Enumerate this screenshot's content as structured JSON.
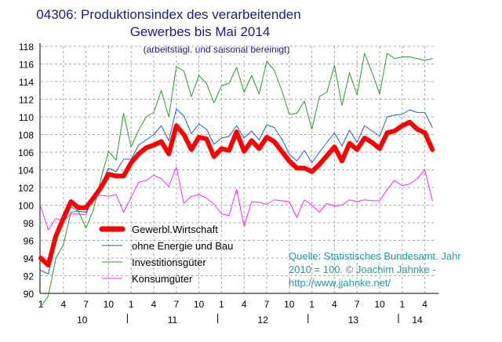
{
  "chart_data": {
    "type": "line",
    "title": [
      "04306: Produktionsindex des verarbeitenden",
      "Gewerbes bis Mai 2014"
    ],
    "subtitle": "(arbeitstägl. und saisonal bereinigt)",
    "ylim": [
      90,
      118
    ],
    "yticks": [
      "90",
      "92",
      "94",
      "96",
      "98",
      "100",
      "102",
      "104",
      "106",
      "108",
      "110",
      "112",
      "114",
      "116",
      "118"
    ],
    "xtick_months": [
      "1",
      "4",
      "7",
      "10"
    ],
    "years": [
      "10",
      "11",
      "12",
      "13",
      "14"
    ],
    "x_start": "2010-01",
    "n_months": 53,
    "grid": true,
    "legend_position": "bottom-left",
    "series": [
      {
        "name": "Gewerbl.Wirtschaft",
        "color": "#ff0000",
        "width": 6,
        "values": [
          94,
          93.2,
          96.5,
          98.5,
          100.4,
          99.7,
          99.7,
          100.8,
          102,
          103.5,
          103.3,
          103.3,
          104.8,
          105.8,
          106.5,
          106.8,
          107.2,
          105.8,
          109,
          108,
          106.3,
          107.7,
          107.5,
          105.5,
          106.4,
          106.2,
          108.3,
          106.1,
          107.3,
          106.4,
          107.7,
          107.2,
          106.1,
          105,
          104.2,
          104.2,
          103.8,
          104.6,
          105.6,
          106.6,
          105,
          107,
          106.3,
          107.6,
          107.1,
          106.4,
          108.2,
          108.4,
          109,
          109.4,
          108.6,
          108.2,
          106.3
        ]
      },
      {
        "name": "ohne Energie und Bau",
        "color": "#1f5fd0",
        "width": 1,
        "values": [
          92.6,
          92.2,
          96,
          98,
          99.8,
          99.3,
          99.2,
          100.7,
          102.3,
          104.2,
          103.8,
          105.2,
          105.2,
          106.8,
          107.4,
          108,
          109,
          107.3,
          110.9,
          110.1,
          108.1,
          109.2,
          108.6,
          106.9,
          107.6,
          107.8,
          109,
          107.6,
          108.4,
          107.4,
          109.1,
          108.8,
          107.5,
          105.8,
          105,
          106.2,
          104.8,
          106,
          107.1,
          108.2,
          106.7,
          108.5,
          107.1,
          109,
          108.4,
          107.8,
          110,
          110.2,
          110.3,
          110.8,
          110.5,
          110.5,
          108.8
        ]
      },
      {
        "name": "Investitionsgüter",
        "color": "#2a9a2a",
        "width": 1,
        "values": [
          88.5,
          89.7,
          94,
          95.5,
          99.2,
          99.3,
          97.4,
          99.5,
          103,
          106.1,
          105.1,
          110.4,
          106.6,
          108.5,
          110,
          110.5,
          113,
          110,
          115.7,
          115.2,
          112.3,
          114.7,
          113.8,
          111.6,
          113.5,
          113.8,
          115.6,
          112.8,
          114.7,
          112.6,
          116.3,
          115.3,
          113,
          110.3,
          110.4,
          111.8,
          108.6,
          112.3,
          112.8,
          115.8,
          111.3,
          115,
          112.5,
          117.2,
          115,
          112.6,
          117.2,
          116.6,
          116.8,
          116.8,
          116.6,
          116.4,
          116.6
        ]
      },
      {
        "name": "Konsumgüter",
        "color": "#ff22ff",
        "width": 1,
        "values": [
          99.8,
          97.2,
          98.5,
          98.2,
          99,
          99,
          98.9,
          101.2,
          101.1,
          101,
          101.2,
          99.2,
          100.9,
          102.6,
          102.8,
          103.4,
          103,
          102.1,
          104.3,
          100.2,
          101,
          101.2,
          100.8,
          100.1,
          99,
          98.8,
          101.8,
          97.6,
          100.4,
          100.3,
          100.1,
          100.6,
          100.5,
          100.4,
          98.6,
          100.6,
          100,
          99.2,
          100.2,
          99.9,
          100,
          100.6,
          100.4,
          100.6,
          100.5,
          100.5,
          101.8,
          102.8,
          102.2,
          102.4,
          103,
          104,
          100.5
        ]
      }
    ],
    "annotation": [
      "Quelle: Statistisches Bundesamt. Jahr",
      "2010 = 100. © Joachim Jahnke -",
      "http://www.jjahnke.net/"
    ]
  }
}
